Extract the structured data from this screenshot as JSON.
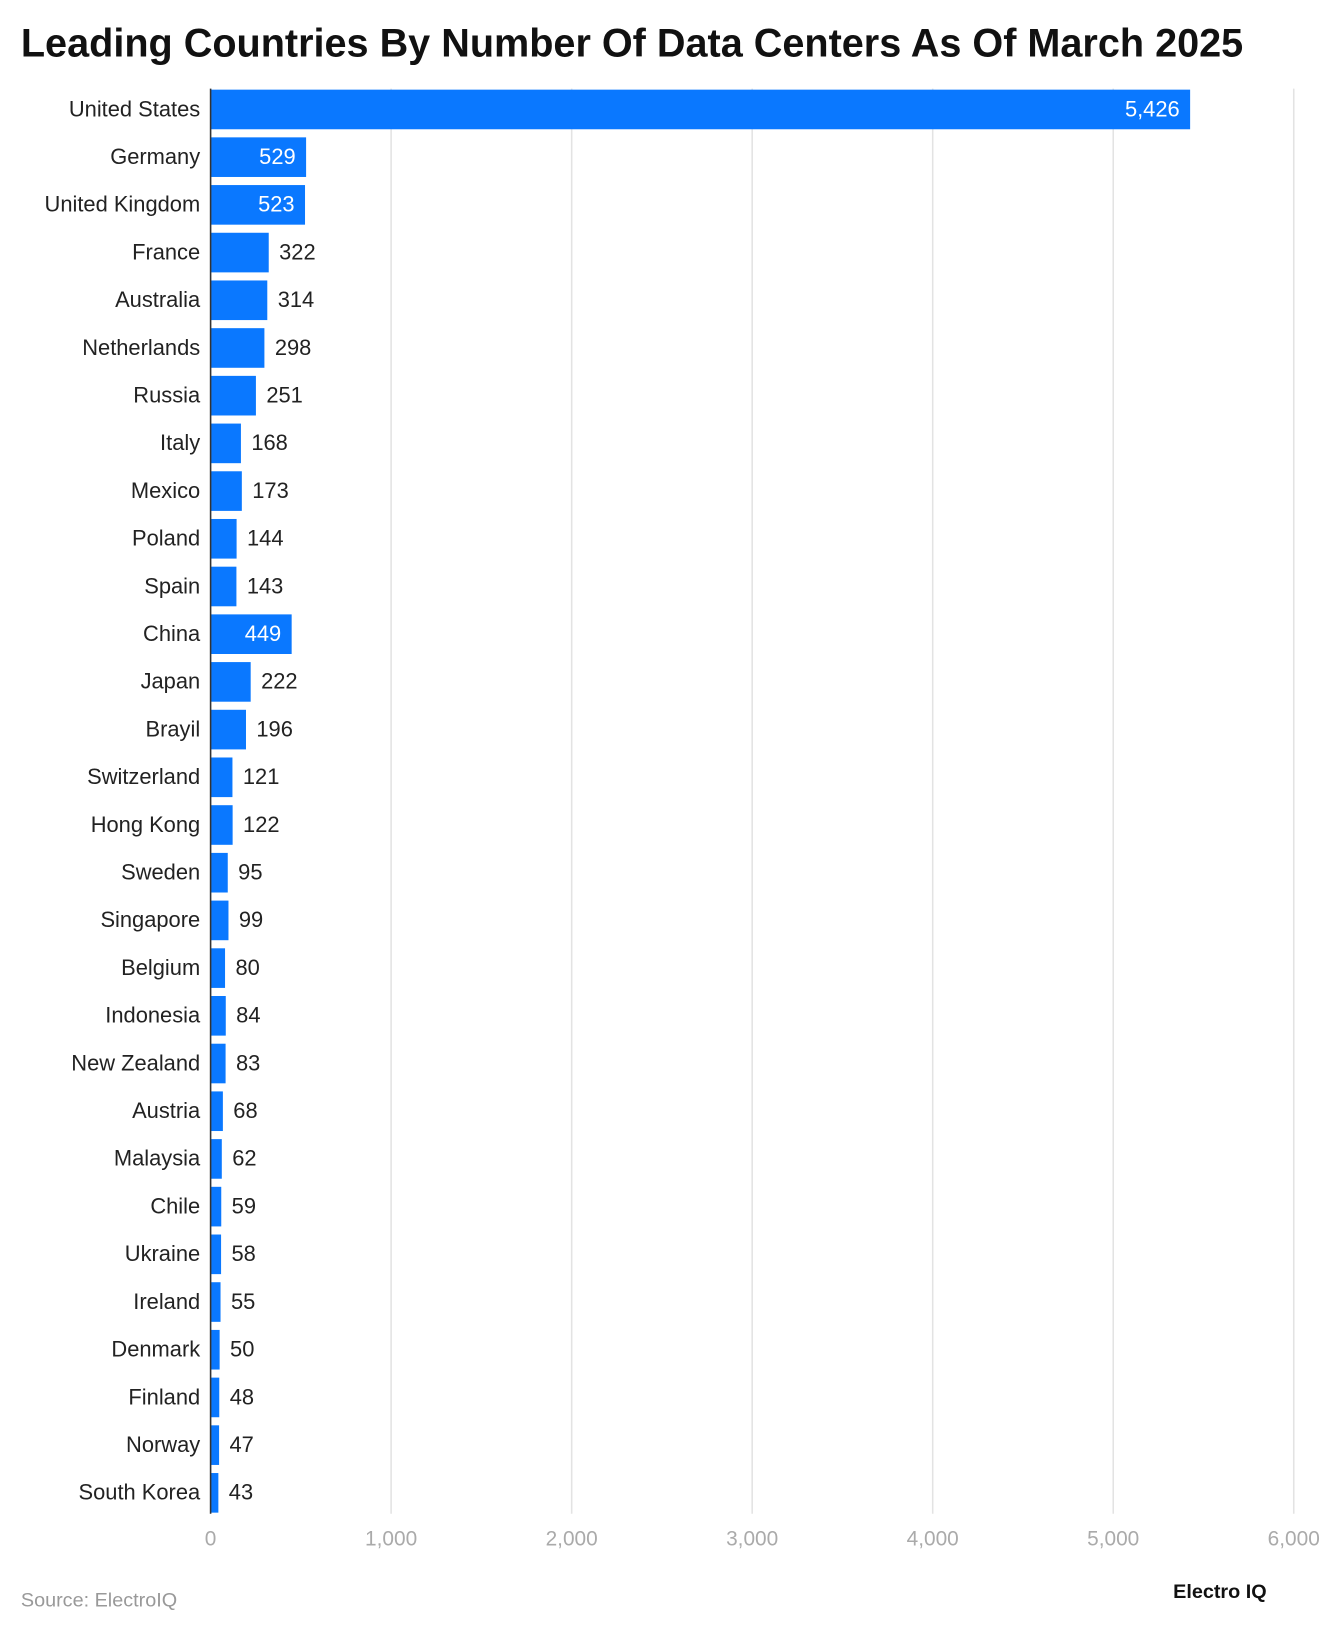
{
  "chart_data": {
    "type": "hbar",
    "title": "Leading Countries By Number Of Data Centers As Of March 2025",
    "categories": [
      "United States",
      "Germany",
      "United Kingdom",
      "France",
      "Australia",
      "Netherlands",
      "Russia",
      "Italy",
      "Mexico",
      "Poland",
      "Spain",
      "China",
      "Japan",
      "Brayil",
      "Switzerland",
      "Hong Kong",
      "Sweden",
      "Singapore",
      "Belgium",
      "Indonesia",
      "New Zealand",
      "Austria",
      "Malaysia",
      "Chile",
      "Ukraine",
      "Ireland",
      "Denmark",
      "Finland",
      "Norway",
      "South Korea"
    ],
    "values": [
      5426,
      529,
      523,
      322,
      314,
      298,
      251,
      168,
      173,
      144,
      143,
      449,
      222,
      196,
      121,
      122,
      95,
      99,
      80,
      84,
      83,
      68,
      62,
      59,
      58,
      55,
      50,
      48,
      47,
      43
    ],
    "value_labels": [
      "5,426",
      "529",
      "523",
      "322",
      "314",
      "298",
      "251",
      "168",
      "173",
      "144",
      "143",
      "449",
      "222",
      "196",
      "121",
      "122",
      "95",
      "99",
      "80",
      "84",
      "83",
      "68",
      "62",
      "59",
      "58",
      "55",
      "50",
      "48",
      "47",
      "43"
    ],
    "color": "#0a78ff",
    "xlim": [
      0,
      6000
    ],
    "xticks": [
      0,
      {
        "value": 1000,
        "label": "1,000"
      },
      {
        "value": 2000,
        "label": "2,000"
      },
      {
        "value": 3000,
        "label": "3,000"
      },
      {
        "value": 4000,
        "label": "4,000"
      },
      {
        "value": 5000,
        "label": "5,000"
      },
      {
        "value": 6000,
        "label": "6,000"
      }
    ],
    "grid": true,
    "source": "Source: ElectroIQ",
    "brand": "Electro IQ"
  }
}
